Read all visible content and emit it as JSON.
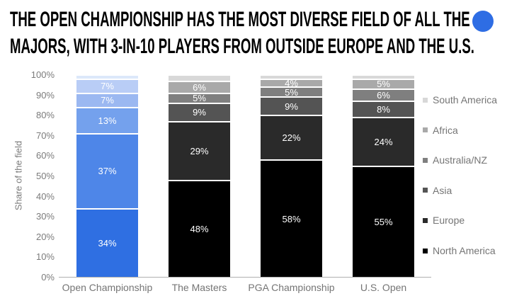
{
  "header": {
    "title_line1": "THE OPEN CHAMPIONSHIP HAS THE MOST DIVERSE FIELD OF ALL THE",
    "title_line2": "MAJORS, WITH 3-IN-10 PLAYERS FROM OUTSIDE EUROPE AND THE U.S.",
    "accent_dot_color": "#2e6de4"
  },
  "chart_data": {
    "type": "bar",
    "variant": "stacked-percent",
    "ylabel": "Share of the field",
    "ylim": [
      0,
      100
    ],
    "grid": false,
    "legend_position": "right",
    "yticks": [
      "0%",
      "10%",
      "20%",
      "30%",
      "40%",
      "50%",
      "60%",
      "70%",
      "80%",
      "90%",
      "100%"
    ],
    "categories": [
      "Open Championship",
      "The Masters",
      "PGA Championship",
      "U.S. Open"
    ],
    "legend": [
      {
        "label": "South America",
        "color": "#d8d8d8"
      },
      {
        "label": "Africa",
        "color": "#a9a9a9"
      },
      {
        "label": "Australia/NZ",
        "color": "#7f7f7f"
      },
      {
        "label": "Asia",
        "color": "#545454"
      },
      {
        "label": "Europe",
        "color": "#2a2a2a"
      },
      {
        "label": "North America",
        "color": "#000000"
      }
    ],
    "bars": [
      {
        "category": "Open Championship",
        "segments": [
          {
            "region": "North America",
            "value": 34,
            "label": "34%",
            "color": "#2f6fe2"
          },
          {
            "region": "Europe",
            "value": 37,
            "label": "37%",
            "color": "#4e86e8"
          },
          {
            "region": "Asia",
            "value": 13,
            "label": "13%",
            "color": "#74a1ed"
          },
          {
            "region": "Australia/NZ",
            "value": 7,
            "label": "7%",
            "color": "#9bb8f1"
          },
          {
            "region": "Africa",
            "value": 7,
            "label": "7%",
            "color": "#b9cdf6"
          },
          {
            "region": "South America",
            "value": 2,
            "label": "",
            "color": "#dce8fa"
          }
        ]
      },
      {
        "category": "The Masters",
        "segments": [
          {
            "region": "North America",
            "value": 48,
            "label": "48%",
            "color": "#000000"
          },
          {
            "region": "Europe",
            "value": 29,
            "label": "29%",
            "color": "#2a2a2a"
          },
          {
            "region": "Asia",
            "value": 9,
            "label": "9%",
            "color": "#545454"
          },
          {
            "region": "Australia/NZ",
            "value": 5,
            "label": "5%",
            "color": "#7f7f7f"
          },
          {
            "region": "Africa",
            "value": 6,
            "label": "6%",
            "color": "#a9a9a9"
          },
          {
            "region": "South America",
            "value": 3,
            "label": "",
            "color": "#d8d8d8"
          }
        ]
      },
      {
        "category": "PGA Championship",
        "segments": [
          {
            "region": "North America",
            "value": 58,
            "label": "58%",
            "color": "#000000"
          },
          {
            "region": "Europe",
            "value": 22,
            "label": "22%",
            "color": "#2a2a2a"
          },
          {
            "region": "Asia",
            "value": 9,
            "label": "9%",
            "color": "#545454"
          },
          {
            "region": "Australia/NZ",
            "value": 5,
            "label": "5%",
            "color": "#7f7f7f"
          },
          {
            "region": "Africa",
            "value": 4,
            "label": "4%",
            "color": "#a9a9a9"
          },
          {
            "region": "South America",
            "value": 2,
            "label": "",
            "color": "#d8d8d8"
          }
        ]
      },
      {
        "category": "U.S. Open",
        "segments": [
          {
            "region": "North America",
            "value": 55,
            "label": "55%",
            "color": "#000000"
          },
          {
            "region": "Europe",
            "value": 24,
            "label": "24%",
            "color": "#2a2a2a"
          },
          {
            "region": "Asia",
            "value": 8,
            "label": "8%",
            "color": "#545454"
          },
          {
            "region": "Australia/NZ",
            "value": 6,
            "label": "6%",
            "color": "#7f7f7f"
          },
          {
            "region": "Africa",
            "value": 5,
            "label": "5%",
            "color": "#a9a9a9"
          },
          {
            "region": "South America",
            "value": 2,
            "label": "",
            "color": "#d8d8d8"
          }
        ]
      }
    ]
  }
}
